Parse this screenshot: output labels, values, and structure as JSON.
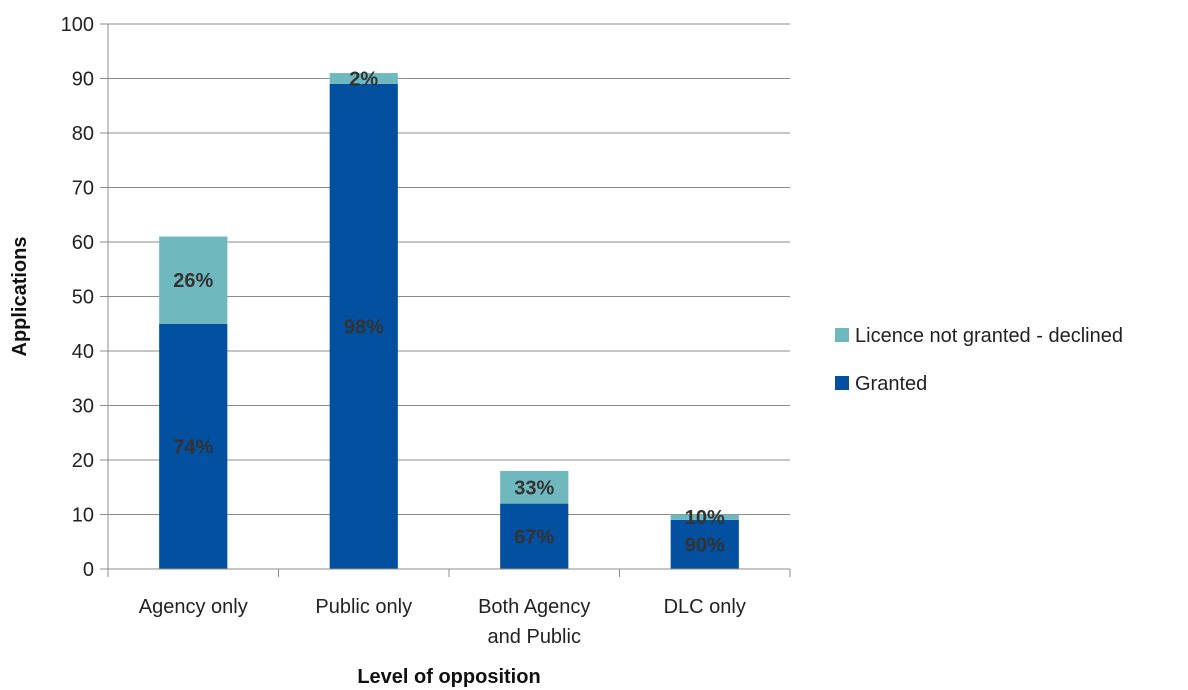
{
  "chart_data": {
    "type": "bar",
    "stacked": true,
    "title": "",
    "xlabel": "Level of opposition",
    "ylabel": "Applications",
    "ylim": [
      0,
      100
    ],
    "yticks": [
      0,
      10,
      20,
      30,
      40,
      50,
      60,
      70,
      80,
      90,
      100
    ],
    "grid": true,
    "legend_position": "right",
    "categories": [
      [
        "Agency only"
      ],
      [
        "Public only"
      ],
      [
        "Both Agency",
        "and Public"
      ],
      [
        "DLC only"
      ]
    ],
    "series": [
      {
        "name": "Granted",
        "color": "#0350A0",
        "values": [
          45,
          89,
          12,
          9
        ],
        "labels": [
          "74%",
          "98%",
          "67%",
          "90%"
        ]
      },
      {
        "name": "Licence not granted - declined",
        "color": "#6FB8BE",
        "values": [
          16,
          2,
          6,
          1
        ],
        "labels": [
          "26%",
          "2%",
          "33%",
          "10%"
        ]
      }
    ],
    "legend_order": [
      "Licence not granted - declined",
      "Granted"
    ]
  }
}
